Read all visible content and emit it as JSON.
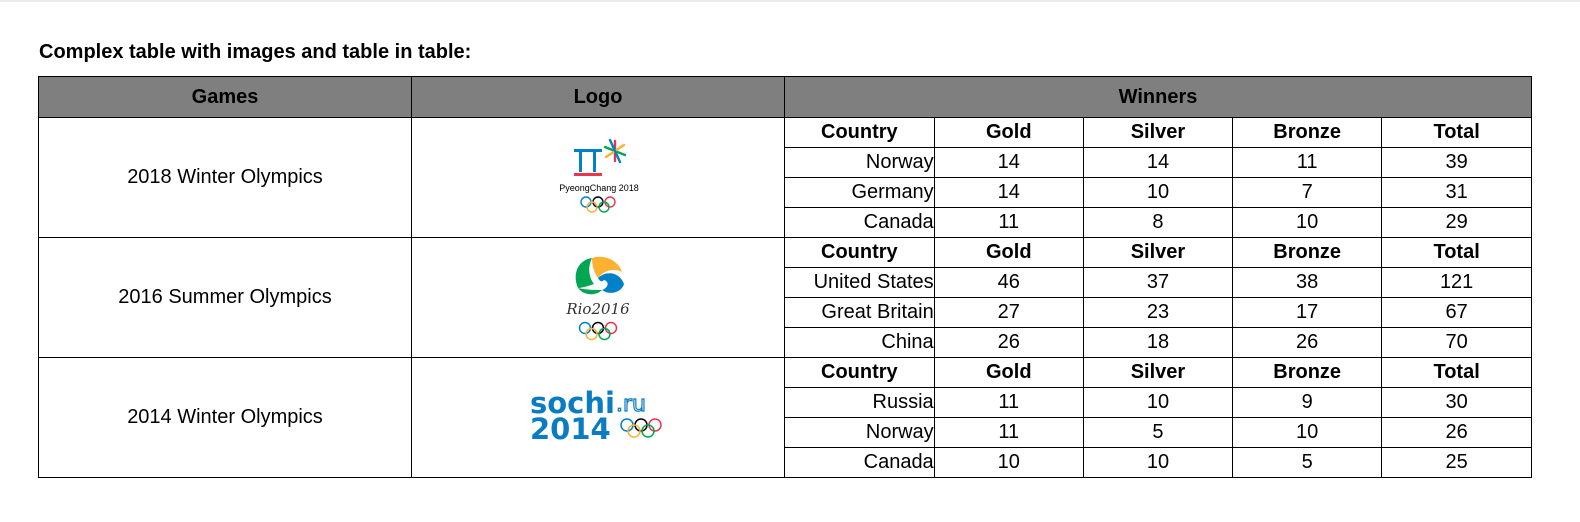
{
  "heading": "Complex table with images and table in table:",
  "columns": {
    "games": "Games",
    "logo": "Logo",
    "winners": "Winners"
  },
  "winner_columns": [
    "Country",
    "Gold",
    "Silver",
    "Bronze",
    "Total"
  ],
  "games": [
    {
      "name": "2018 Winter Olympics",
      "logo_text": "PyeongChang 2018",
      "rows": [
        [
          "Norway",
          "14",
          "14",
          "11",
          "39"
        ],
        [
          "Germany",
          "14",
          "10",
          "7",
          "31"
        ],
        [
          "Canada",
          "11",
          "8",
          "10",
          "29"
        ]
      ]
    },
    {
      "name": "2016 Summer Olympics",
      "logo_text": "Rio2016",
      "rows": [
        [
          "United States",
          "46",
          "37",
          "38",
          "121"
        ],
        [
          "Great Britain",
          "27",
          "23",
          "17",
          "67"
        ],
        [
          "China",
          "26",
          "18",
          "26",
          "70"
        ]
      ]
    },
    {
      "name": "2014 Winter Olympics",
      "logo_text_line1": "sochi",
      "logo_text_domain": ".ru",
      "logo_text_line2": "2014",
      "rows": [
        [
          "Russia",
          "11",
          "10",
          "9",
          "30"
        ],
        [
          "Norway",
          "11",
          "5",
          "10",
          "26"
        ],
        [
          "Canada",
          "10",
          "10",
          "5",
          "25"
        ]
      ]
    }
  ],
  "colors": {
    "header_bg": "#7f7f7f",
    "ring_blue": "#0081c8",
    "ring_black": "#000000",
    "ring_red": "#ee334e",
    "ring_yellow": "#fcb131",
    "ring_green": "#00a651",
    "sochi_blue": "#0a7cc1"
  }
}
